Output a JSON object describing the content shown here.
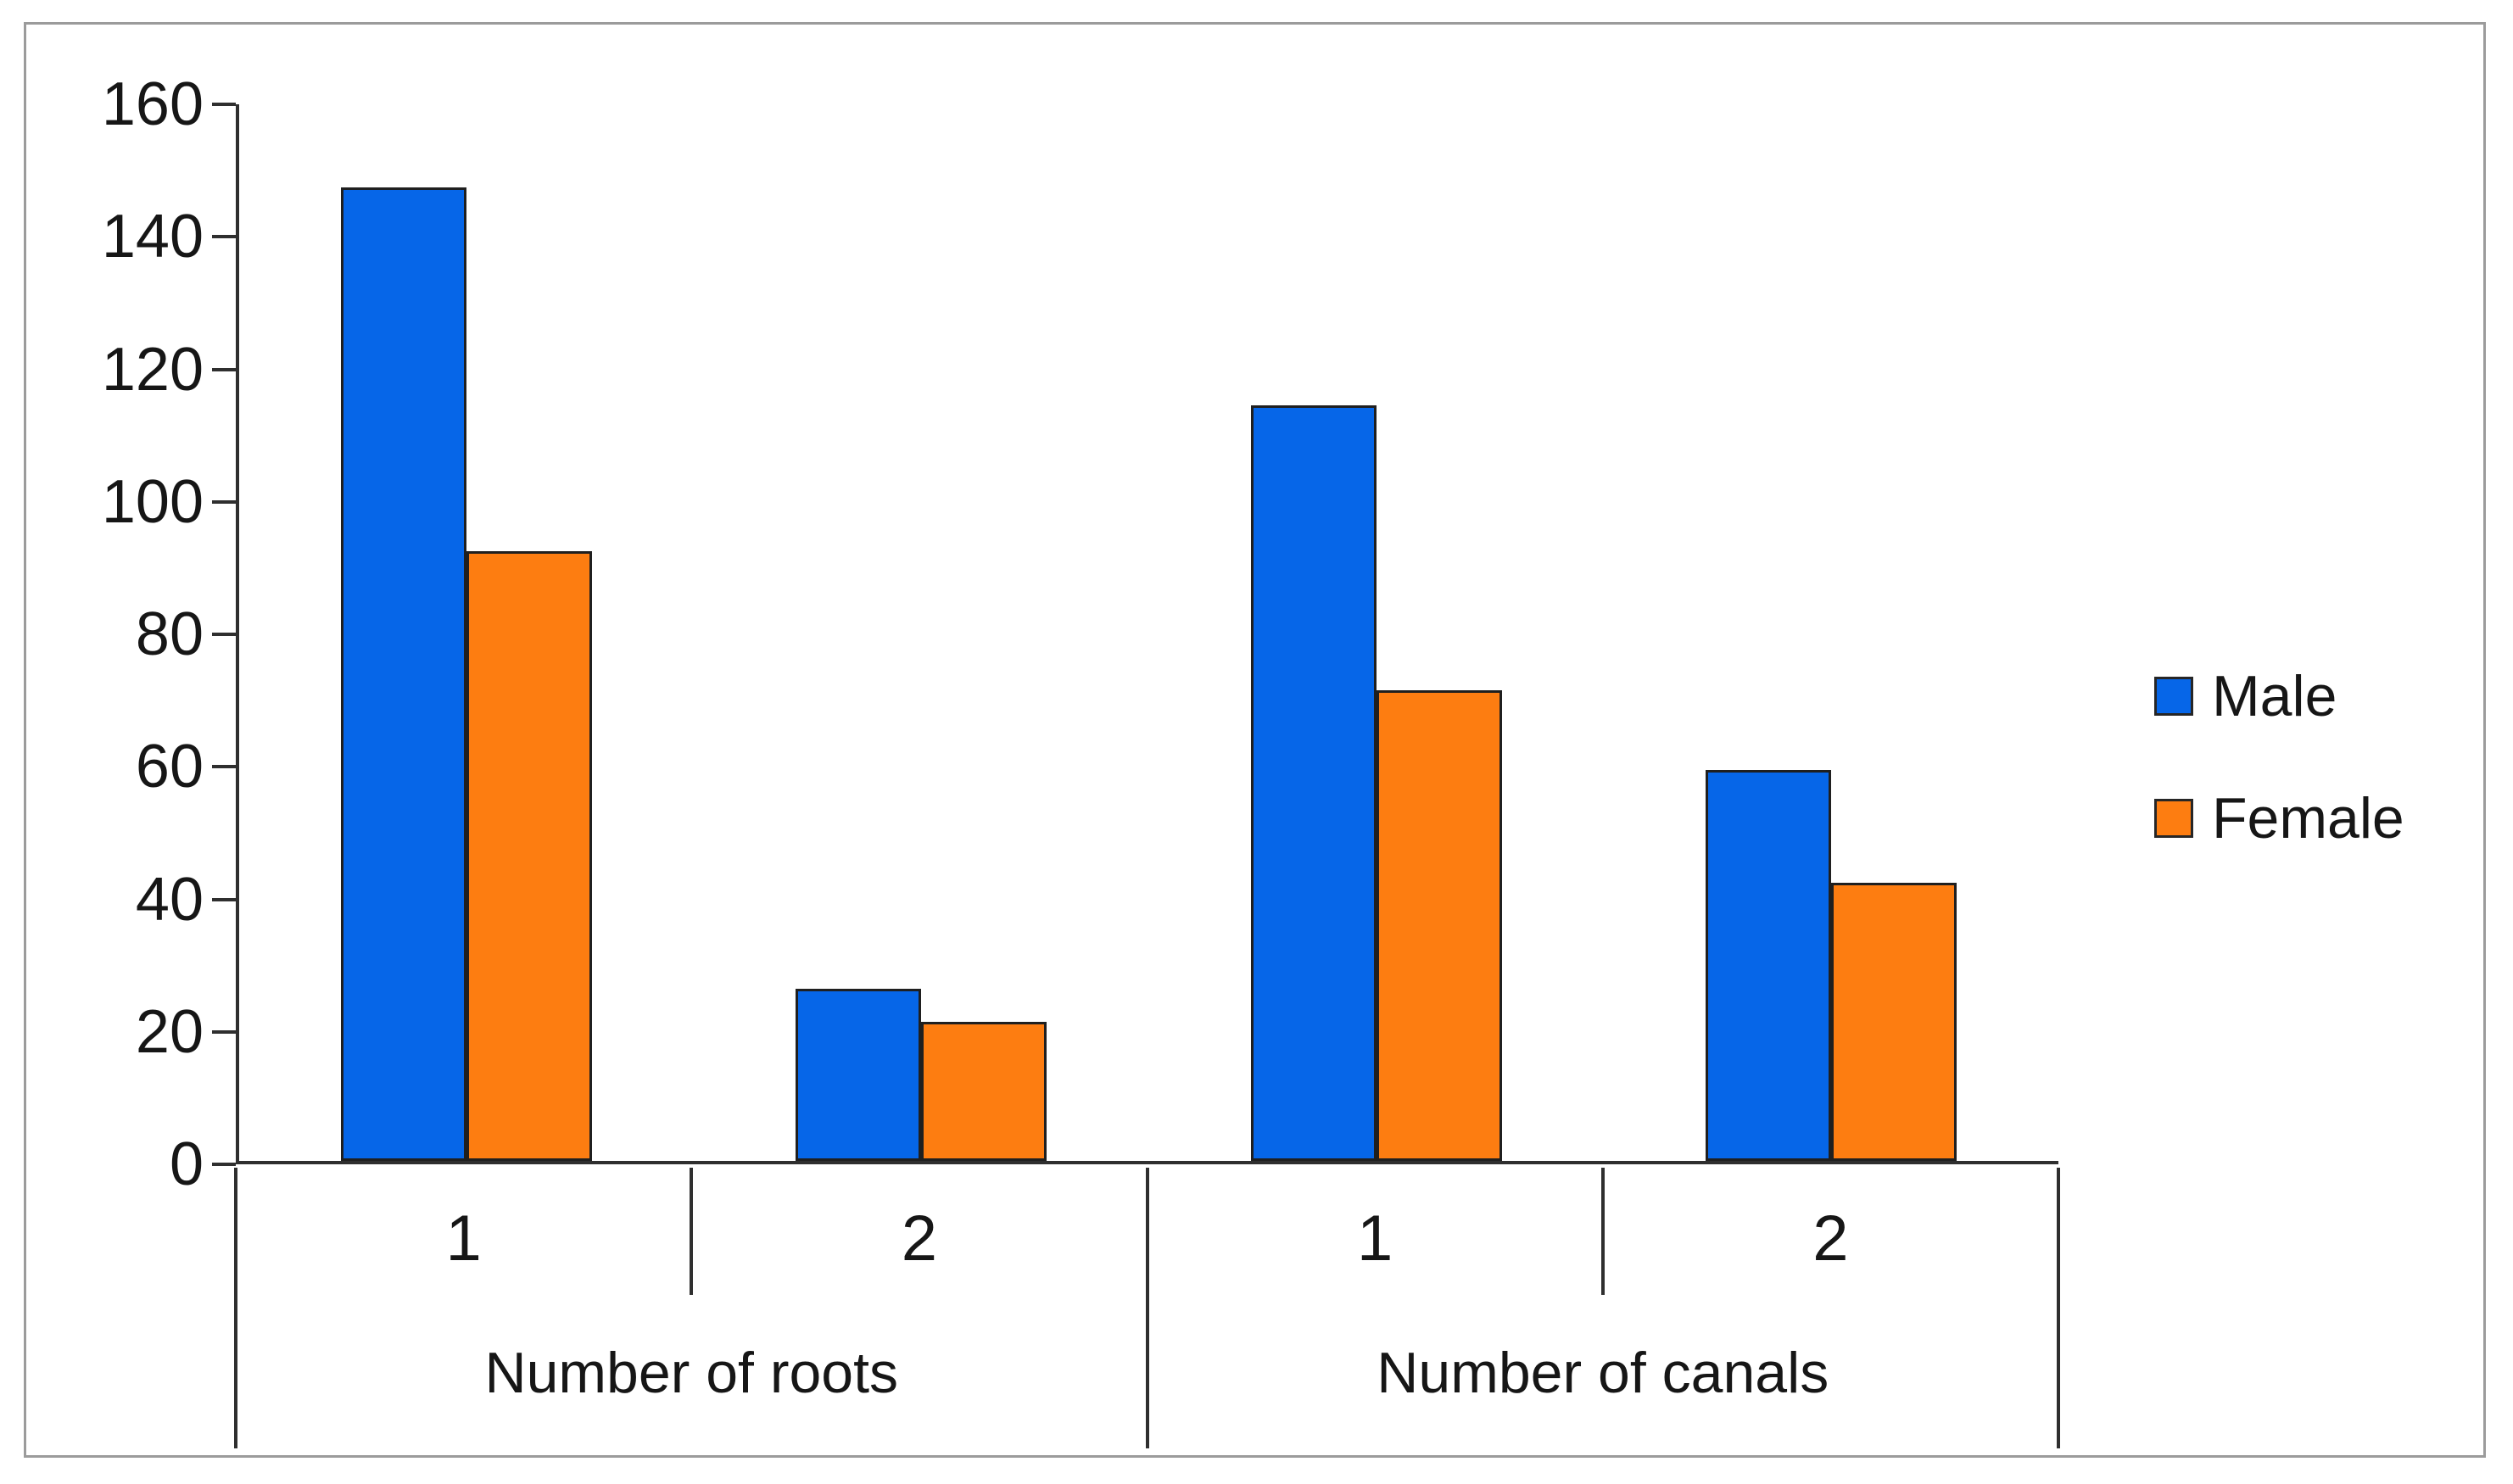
{
  "chart_data": {
    "type": "bar",
    "title": "",
    "xlabel": "",
    "ylabel": "",
    "categories": [
      "1",
      "2",
      "1",
      "2"
    ],
    "category_groups": [
      {
        "label": "Number of roots",
        "categories": [
          "1",
          "2"
        ]
      },
      {
        "label": "Number of canals",
        "categories": [
          "1",
          "2"
        ]
      }
    ],
    "series": [
      {
        "name": "Male",
        "color": "#0666e8",
        "values": [
          147,
          26,
          114,
          59
        ]
      },
      {
        "name": "Female",
        "color": "#fd7d11",
        "values": [
          92,
          21,
          71,
          42
        ]
      }
    ],
    "ylim": [
      0,
      160
    ],
    "yticks": [
      0,
      20,
      40,
      60,
      80,
      100,
      120,
      140,
      160
    ],
    "grid": false,
    "legend_position": "right",
    "colors": {
      "axis": "#2f2f2f",
      "bar_outline": "#1f1f1f",
      "frame_border": "#9b9b9b",
      "text": "#161616"
    }
  }
}
